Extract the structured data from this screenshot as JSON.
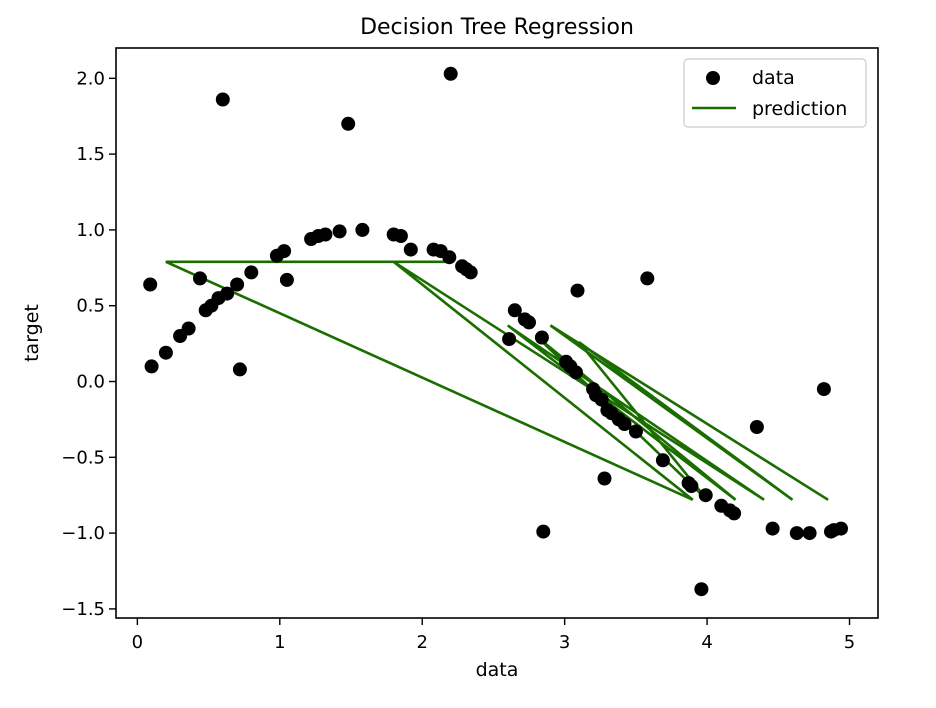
{
  "chart_data": {
    "type": "scatter",
    "title": "Decision Tree Regression",
    "xlabel": "data",
    "ylabel": "target",
    "xlim": [
      -0.15,
      5.2
    ],
    "ylim": [
      -1.56,
      2.2
    ],
    "xticks": [
      0,
      1,
      2,
      3,
      4,
      5
    ],
    "yticks": [
      -1.5,
      -1.0,
      -0.5,
      0.0,
      0.5,
      1.0,
      1.5,
      2.0
    ],
    "xtick_labels": [
      "0",
      "1",
      "2",
      "3",
      "4",
      "5"
    ],
    "ytick_labels": [
      "−1.5",
      "−1.0",
      "−0.5",
      "0.0",
      "0.5",
      "1.0",
      "1.5",
      "2.0"
    ],
    "grid": false,
    "legend": {
      "placement": "top-right",
      "entries": [
        "data",
        "prediction"
      ]
    },
    "colors": {
      "data": "#000000",
      "prediction": "#1a6e00"
    },
    "series": [
      {
        "name": "data",
        "kind": "scatter",
        "x": [
          0.09,
          0.1,
          0.2,
          0.3,
          0.36,
          0.44,
          0.48,
          0.52,
          0.57,
          0.6,
          0.63,
          0.7,
          0.72,
          0.8,
          0.98,
          1.03,
          1.05,
          1.22,
          1.27,
          1.32,
          1.42,
          1.48,
          1.58,
          1.8,
          1.85,
          1.92,
          2.08,
          2.13,
          2.19,
          2.2,
          2.28,
          2.31,
          2.34,
          2.61,
          2.65,
          2.72,
          2.75,
          2.84,
          2.85,
          3.01,
          3.04,
          3.08,
          3.09,
          3.2,
          3.22,
          3.26,
          3.28,
          3.3,
          3.33,
          3.38,
          3.42,
          3.5,
          3.58,
          3.69,
          3.87,
          3.89,
          3.96,
          3.99,
          4.1,
          4.16,
          4.19,
          4.35,
          4.46,
          4.63,
          4.72,
          4.82,
          4.87,
          4.89,
          4.94
        ],
        "y": [
          0.64,
          0.1,
          0.19,
          0.3,
          0.35,
          0.68,
          0.47,
          0.5,
          0.55,
          1.86,
          0.58,
          0.64,
          0.08,
          0.72,
          0.83,
          0.86,
          0.67,
          0.94,
          0.96,
          0.97,
          0.99,
          1.7,
          1.0,
          0.97,
          0.96,
          0.87,
          0.87,
          0.86,
          0.82,
          2.03,
          0.76,
          0.74,
          0.72,
          0.28,
          0.47,
          0.41,
          0.39,
          0.29,
          -0.99,
          0.13,
          0.1,
          0.06,
          0.6,
          -0.05,
          -0.09,
          -0.12,
          -0.64,
          -0.19,
          -0.21,
          -0.25,
          -0.28,
          -0.33,
          0.68,
          -0.52,
          -0.67,
          -0.69,
          -1.37,
          -0.75,
          -0.82,
          -0.85,
          -0.87,
          -0.3,
          -0.97,
          -1.0,
          -1.0,
          -0.05,
          -0.99,
          -0.98,
          -0.97
        ]
      },
      {
        "name": "prediction",
        "kind": "line",
        "x": [
          0.3,
          2.2,
          0.2,
          3.9,
          1.8,
          4.4,
          2.6,
          4.2,
          2.8,
          4.0,
          3.1,
          4.6,
          2.9,
          4.85
        ],
        "y": [
          0.79,
          0.79,
          0.79,
          -0.78,
          0.79,
          -0.78,
          0.37,
          -0.78,
          0.3,
          -0.78,
          0.26,
          -0.78,
          0.37,
          -0.78
        ]
      }
    ]
  }
}
